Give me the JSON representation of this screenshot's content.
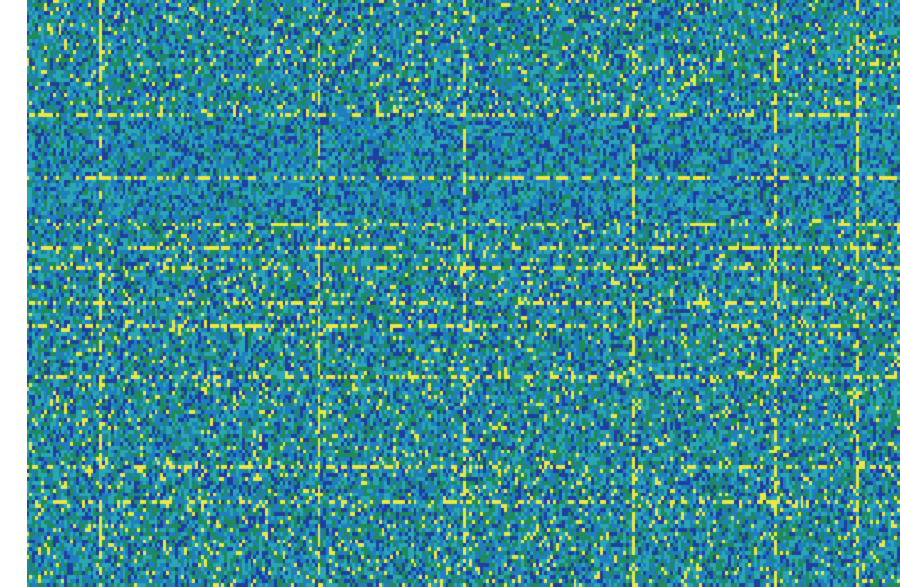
{
  "chart_data": {
    "type": "heatmap",
    "title": "",
    "xlabel": "",
    "ylabel": "",
    "legend": "none",
    "grid": false,
    "colormap": {
      "low": "#1f3fa0",
      "mid_low": "#1f7fbf",
      "mid": "#2aa6b5",
      "mid_high": "#1f8a5a",
      "high": "#e8e84a"
    },
    "rows": 150,
    "cols": 300,
    "value_range": [
      0,
      1
    ],
    "highlighted_columns": [
      25,
      100,
      150,
      208,
      257,
      285
    ],
    "highlighted_rows": [
      29,
      45,
      57,
      63,
      68,
      77,
      83,
      96,
      119,
      128
    ],
    "dense_blue_band_rows": [
      [
        30,
        55
      ]
    ],
    "seed": 7
  }
}
